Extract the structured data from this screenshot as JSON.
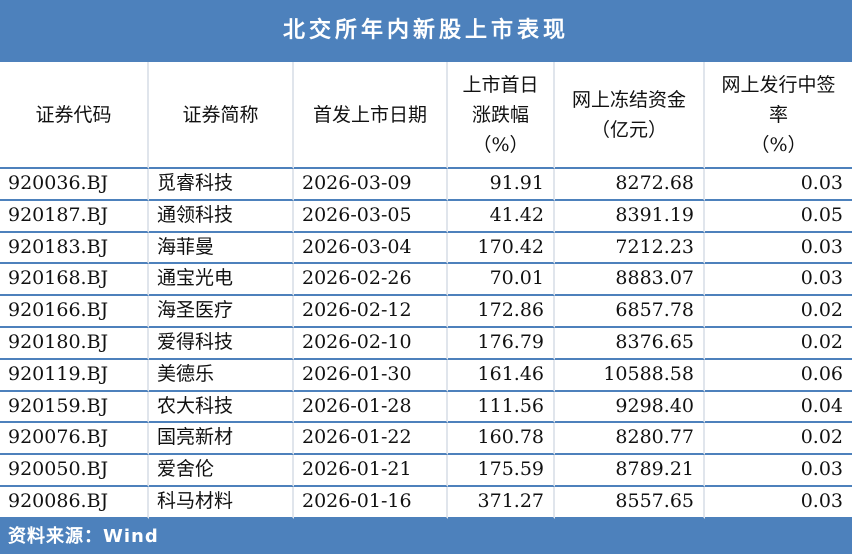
{
  "figure": {
    "title": "北交所年内新股上市表现",
    "source_note": "资料来源：Wind"
  },
  "colors": {
    "accent_blue": "#4d81bc",
    "grid_line_light": "#e0e5ec",
    "text": "#111111"
  },
  "chart_data": {
    "type": "table",
    "title": "北交所年内新股上市表现",
    "source": "Wind",
    "legend_position": "none",
    "grid": "on",
    "columns": [
      {
        "label": "证券代码",
        "header_lines": [
          "证券代码"
        ],
        "align": "left"
      },
      {
        "label": "证券简称",
        "header_lines": [
          "证券简称"
        ],
        "align": "left"
      },
      {
        "label": "首发上市日期",
        "header_lines": [
          "首发上市日期"
        ],
        "align": "left"
      },
      {
        "label": "上市首日涨跌幅（%）",
        "header_lines": [
          "上市首日",
          "涨跌幅",
          "（%）"
        ],
        "align": "right"
      },
      {
        "label": "网上冻结资金（亿元）",
        "header_lines": [
          "网上冻结资金",
          "（亿元）"
        ],
        "align": "right"
      },
      {
        "label": "网上发行中签率（%）",
        "header_lines": [
          "网上发行中签",
          "率",
          "（%）"
        ],
        "align": "right"
      }
    ],
    "rows": [
      [
        "920036.BJ",
        "觅睿科技",
        "2026-03-09",
        "91.91",
        "8272.68",
        "0.03"
      ],
      [
        "920187.BJ",
        "通领科技",
        "2026-03-05",
        "41.42",
        "8391.19",
        "0.05"
      ],
      [
        "920183.BJ",
        "海菲曼",
        "2026-03-04",
        "170.42",
        "7212.23",
        "0.03"
      ],
      [
        "920168.BJ",
        "通宝光电",
        "2026-02-26",
        "70.01",
        "8883.07",
        "0.03"
      ],
      [
        "920166.BJ",
        "海圣医疗",
        "2026-02-12",
        "172.86",
        "6857.78",
        "0.02"
      ],
      [
        "920180.BJ",
        "爱得科技",
        "2026-02-10",
        "176.79",
        "8376.65",
        "0.02"
      ],
      [
        "920119.BJ",
        "美德乐",
        "2026-01-30",
        "161.46",
        "10588.58",
        "0.06"
      ],
      [
        "920159.BJ",
        "农大科技",
        "2026-01-28",
        "111.56",
        "9298.40",
        "0.04"
      ],
      [
        "920076.BJ",
        "国亮新材",
        "2026-01-22",
        "160.78",
        "8280.77",
        "0.02"
      ],
      [
        "920050.BJ",
        "爱舍伦",
        "2026-01-21",
        "175.59",
        "8789.21",
        "0.03"
      ],
      [
        "920086.BJ",
        "科马材料",
        "2026-01-16",
        "371.27",
        "8557.65",
        "0.03"
      ]
    ]
  }
}
